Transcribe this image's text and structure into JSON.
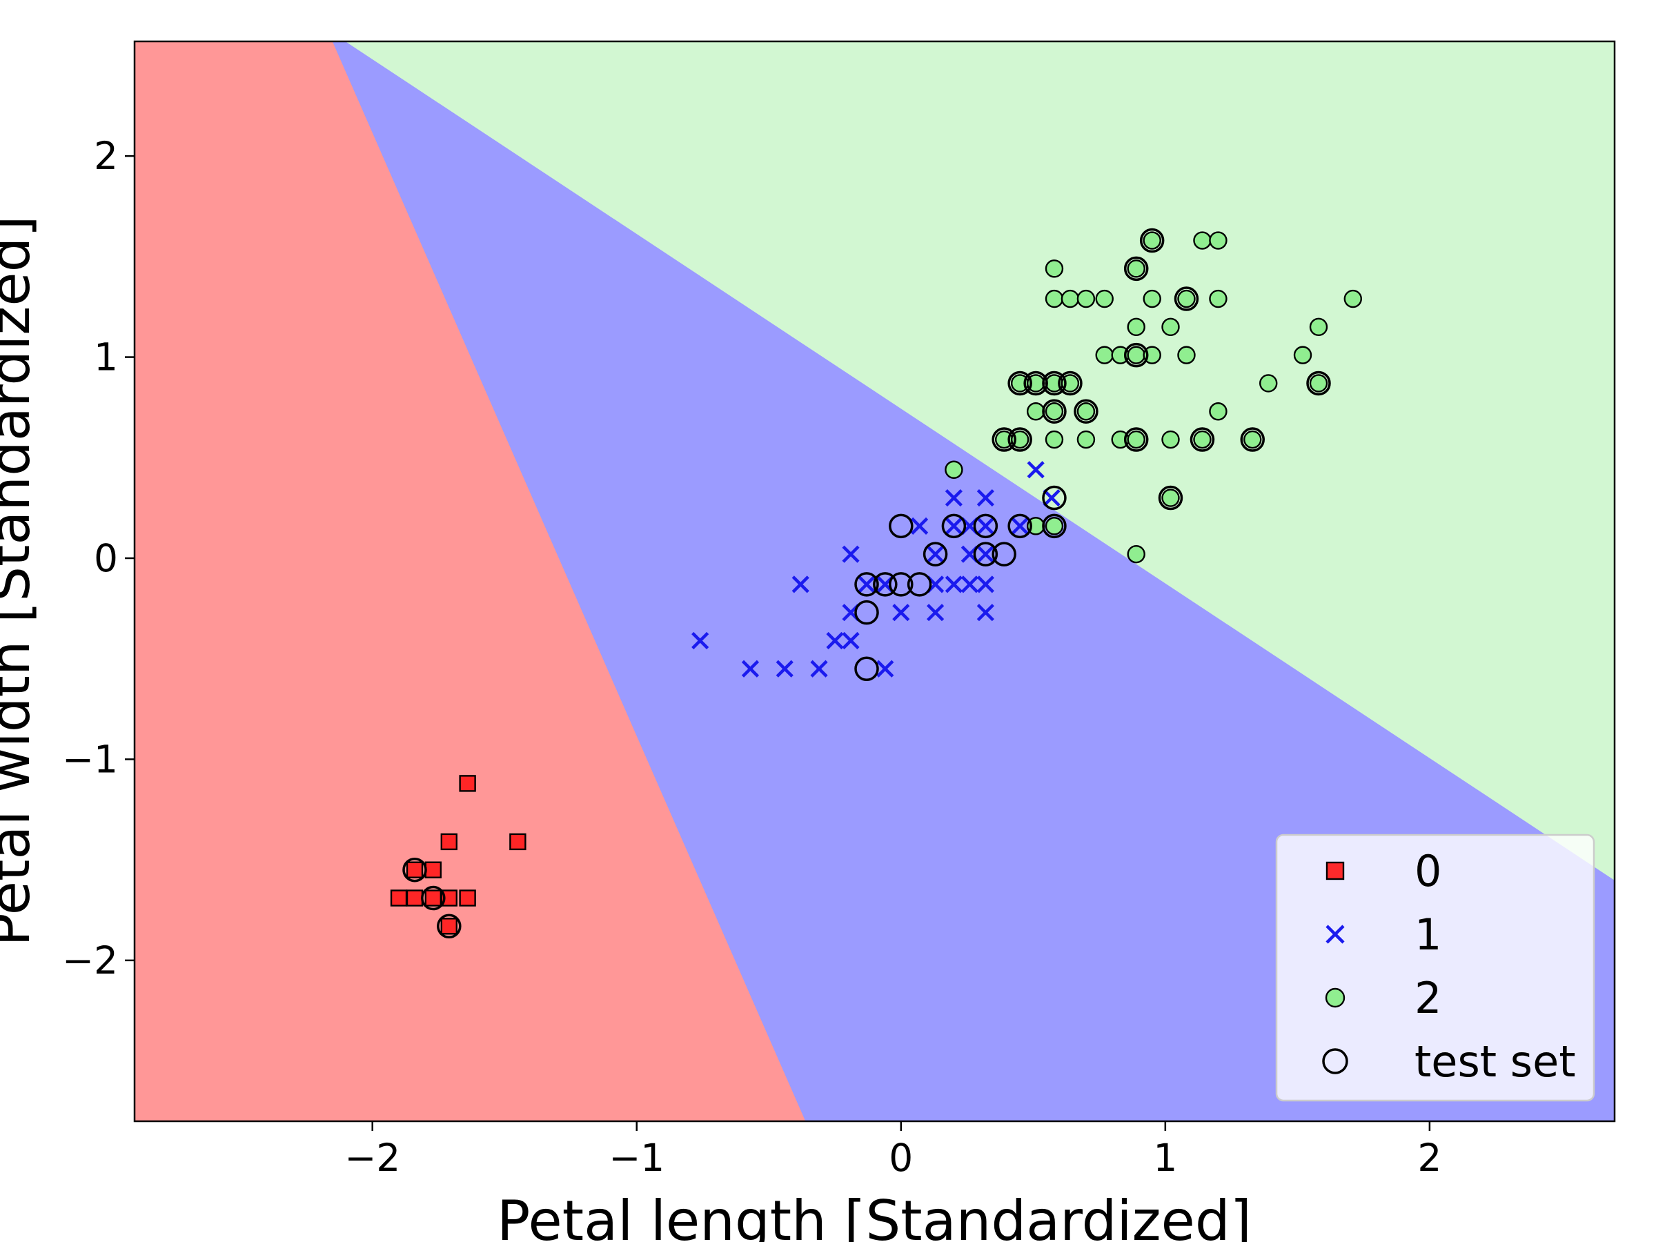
{
  "chart_data": {
    "type": "scatter",
    "title": "",
    "xlabel": "Petal length [Standardized]",
    "ylabel": "Petal width [Standardized]",
    "xlim": [
      -2.9,
      2.7
    ],
    "ylim": [
      -2.8,
      2.57
    ],
    "x_ticks": [
      -2,
      -1,
      0,
      1,
      2
    ],
    "y_ticks": [
      -2,
      -1,
      0,
      1,
      2
    ],
    "x_tick_labels": [
      "−2",
      "−1",
      "0",
      "1",
      "2"
    ],
    "y_tick_labels": [
      "−2",
      "−1",
      "0",
      "1",
      "2"
    ],
    "grid": false,
    "legend_position": "bottom-right",
    "decision_regions": [
      {
        "class": "0",
        "color": "#ff9797",
        "polygon": [
          [
            -2.9,
            2.57
          ],
          [
            -2.15,
            2.57
          ],
          [
            -0.36,
            -2.8
          ],
          [
            -2.9,
            -2.8
          ]
        ]
      },
      {
        "class": "1",
        "color": "#9b9bff",
        "polygon": [
          [
            -2.15,
            2.57
          ],
          [
            -2.1,
            2.57
          ],
          [
            2.7,
            -1.6
          ],
          [
            2.7,
            -2.8
          ],
          [
            -0.36,
            -2.8
          ]
        ]
      },
      {
        "class": "2",
        "color": "#d2f7d2",
        "polygon": [
          [
            -2.1,
            2.57
          ],
          [
            2.7,
            2.57
          ],
          [
            2.7,
            -1.6
          ]
        ]
      }
    ],
    "series": [
      {
        "name": "0",
        "marker": "square",
        "color": "#ff2020",
        "points": [
          [
            -1.64,
            -1.12
          ],
          [
            -1.71,
            -1.41
          ],
          [
            -1.45,
            -1.41
          ],
          [
            -1.84,
            -1.55
          ],
          [
            -1.77,
            -1.55
          ],
          [
            -1.9,
            -1.69
          ],
          [
            -1.84,
            -1.69
          ],
          [
            -1.77,
            -1.69
          ],
          [
            -1.71,
            -1.69
          ],
          [
            -1.64,
            -1.69
          ],
          [
            -1.71,
            -1.83
          ]
        ]
      },
      {
        "name": "1",
        "marker": "x",
        "color": "#1a1aee",
        "points": [
          [
            0.51,
            0.44
          ],
          [
            0.2,
            0.3
          ],
          [
            0.32,
            0.3
          ],
          [
            0.57,
            0.3
          ],
          [
            0.07,
            0.16
          ],
          [
            0.2,
            0.16
          ],
          [
            0.26,
            0.16
          ],
          [
            0.32,
            0.16
          ],
          [
            0.45,
            0.16
          ],
          [
            -0.19,
            0.02
          ],
          [
            0.13,
            0.02
          ],
          [
            0.26,
            0.02
          ],
          [
            0.32,
            0.02
          ],
          [
            -0.38,
            -0.13
          ],
          [
            -0.13,
            -0.13
          ],
          [
            -0.06,
            -0.13
          ],
          [
            0.13,
            -0.13
          ],
          [
            0.2,
            -0.13
          ],
          [
            0.26,
            -0.13
          ],
          [
            0.32,
            -0.13
          ],
          [
            -0.19,
            -0.27
          ],
          [
            0.0,
            -0.27
          ],
          [
            0.13,
            -0.27
          ],
          [
            0.32,
            -0.27
          ],
          [
            -0.76,
            -0.41
          ],
          [
            -0.25,
            -0.41
          ],
          [
            -0.19,
            -0.41
          ],
          [
            -0.57,
            -0.55
          ],
          [
            -0.44,
            -0.55
          ],
          [
            -0.31,
            -0.55
          ],
          [
            -0.06,
            -0.55
          ]
        ]
      },
      {
        "name": "2",
        "marker": "circle",
        "color": "#90ee90",
        "points": [
          [
            0.95,
            1.58
          ],
          [
            1.14,
            1.58
          ],
          [
            1.2,
            1.58
          ],
          [
            0.58,
            1.44
          ],
          [
            0.89,
            1.44
          ],
          [
            0.58,
            1.29
          ],
          [
            0.64,
            1.29
          ],
          [
            0.7,
            1.29
          ],
          [
            0.77,
            1.29
          ],
          [
            0.95,
            1.29
          ],
          [
            1.08,
            1.29
          ],
          [
            1.2,
            1.29
          ],
          [
            1.71,
            1.29
          ],
          [
            0.89,
            1.15
          ],
          [
            1.02,
            1.15
          ],
          [
            1.58,
            1.15
          ],
          [
            0.77,
            1.01
          ],
          [
            0.83,
            1.01
          ],
          [
            0.89,
            1.01
          ],
          [
            0.95,
            1.01
          ],
          [
            1.08,
            1.01
          ],
          [
            1.52,
            1.01
          ],
          [
            0.45,
            0.87
          ],
          [
            0.51,
            0.87
          ],
          [
            0.58,
            0.87
          ],
          [
            0.64,
            0.87
          ],
          [
            1.39,
            0.87
          ],
          [
            1.58,
            0.87
          ],
          [
            0.51,
            0.73
          ],
          [
            0.58,
            0.73
          ],
          [
            0.7,
            0.73
          ],
          [
            1.2,
            0.73
          ],
          [
            0.39,
            0.59
          ],
          [
            0.45,
            0.59
          ],
          [
            0.58,
            0.59
          ],
          [
            0.7,
            0.59
          ],
          [
            0.83,
            0.59
          ],
          [
            0.89,
            0.59
          ],
          [
            1.02,
            0.59
          ],
          [
            1.14,
            0.59
          ],
          [
            1.33,
            0.59
          ],
          [
            0.2,
            0.44
          ],
          [
            1.02,
            0.3
          ],
          [
            0.51,
            0.16
          ],
          [
            0.58,
            0.16
          ],
          [
            0.89,
            0.02
          ]
        ]
      },
      {
        "name": "test set",
        "marker": "open-circle",
        "color": "#000000",
        "points": [
          [
            -1.84,
            -1.55
          ],
          [
            -1.77,
            -1.69
          ],
          [
            -1.71,
            -1.83
          ],
          [
            0.0,
            0.16
          ],
          [
            0.2,
            0.16
          ],
          [
            0.32,
            0.16
          ],
          [
            0.45,
            0.16
          ],
          [
            0.58,
            0.16
          ],
          [
            0.58,
            0.3
          ],
          [
            0.13,
            0.02
          ],
          [
            0.32,
            0.02
          ],
          [
            0.39,
            0.02
          ],
          [
            -0.13,
            -0.13
          ],
          [
            -0.06,
            -0.13
          ],
          [
            0.0,
            -0.13
          ],
          [
            0.07,
            -0.13
          ],
          [
            -0.13,
            -0.27
          ],
          [
            -0.13,
            -0.55
          ],
          [
            0.95,
            1.58
          ],
          [
            0.89,
            1.44
          ],
          [
            1.08,
            1.29
          ],
          [
            0.89,
            1.01
          ],
          [
            0.45,
            0.87
          ],
          [
            0.51,
            0.87
          ],
          [
            0.58,
            0.87
          ],
          [
            0.64,
            0.87
          ],
          [
            1.58,
            0.87
          ],
          [
            0.58,
            0.73
          ],
          [
            0.7,
            0.73
          ],
          [
            0.39,
            0.59
          ],
          [
            0.45,
            0.59
          ],
          [
            0.89,
            0.59
          ],
          [
            1.14,
            0.59
          ],
          [
            1.33,
            0.59
          ],
          [
            1.02,
            0.3
          ]
        ]
      }
    ],
    "legend": [
      {
        "label": "0",
        "marker": "square",
        "color": "#ff2020"
      },
      {
        "label": "1",
        "marker": "x",
        "color": "#1a1aee"
      },
      {
        "label": "2",
        "marker": "circle",
        "color": "#90ee90"
      },
      {
        "label": "test set",
        "marker": "open-circle",
        "color": "#000000"
      }
    ]
  }
}
